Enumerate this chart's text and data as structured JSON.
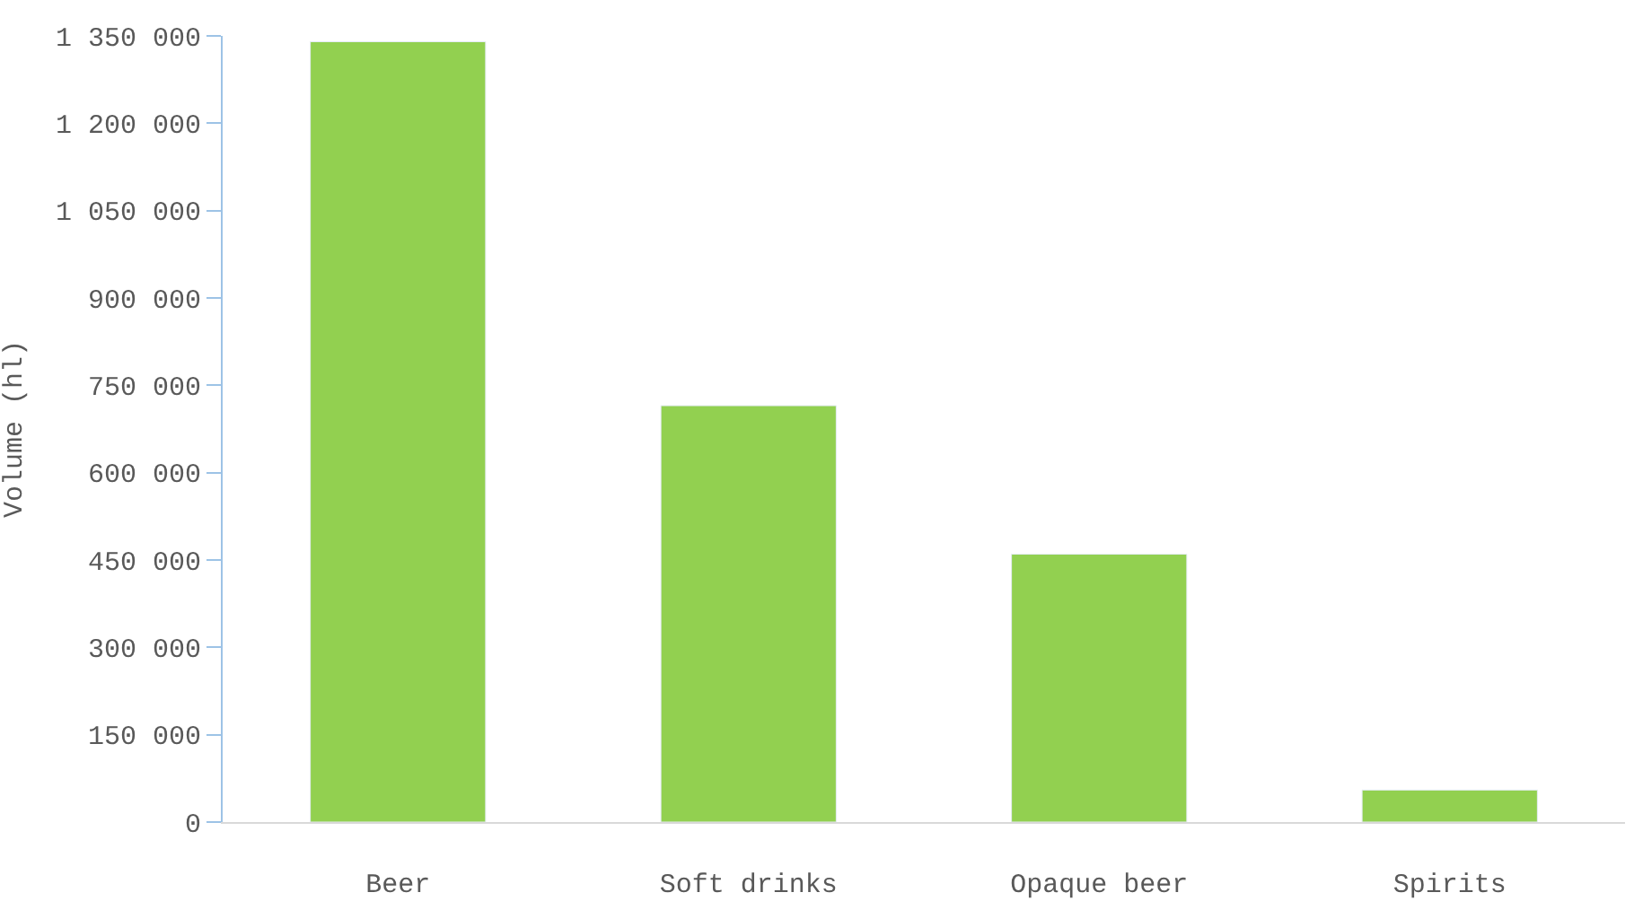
{
  "chart_data": {
    "type": "bar",
    "ylabel": "Volume (hl)",
    "categories": [
      "Beer",
      "Soft drinks",
      "Opaque beer",
      "Spirits"
    ],
    "values": [
      1340000,
      715000,
      460000,
      55000
    ],
    "color": "#92d050",
    "ylim": [
      0,
      1350000
    ],
    "yticks": [
      {
        "value": 0,
        "label": "0"
      },
      {
        "value": 150000,
        "label": "150 000"
      },
      {
        "value": 300000,
        "label": "300 000"
      },
      {
        "value": 450000,
        "label": "450 000"
      },
      {
        "value": 600000,
        "label": "600 000"
      },
      {
        "value": 750000,
        "label": "750 000"
      },
      {
        "value": 900000,
        "label": "900 000"
      },
      {
        "value": 1050000,
        "label": "1 050 000"
      },
      {
        "value": 1200000,
        "label": "1 200 000"
      },
      {
        "value": 1350000,
        "label": "1 350 000"
      }
    ],
    "tick_labels": "xy"
  }
}
